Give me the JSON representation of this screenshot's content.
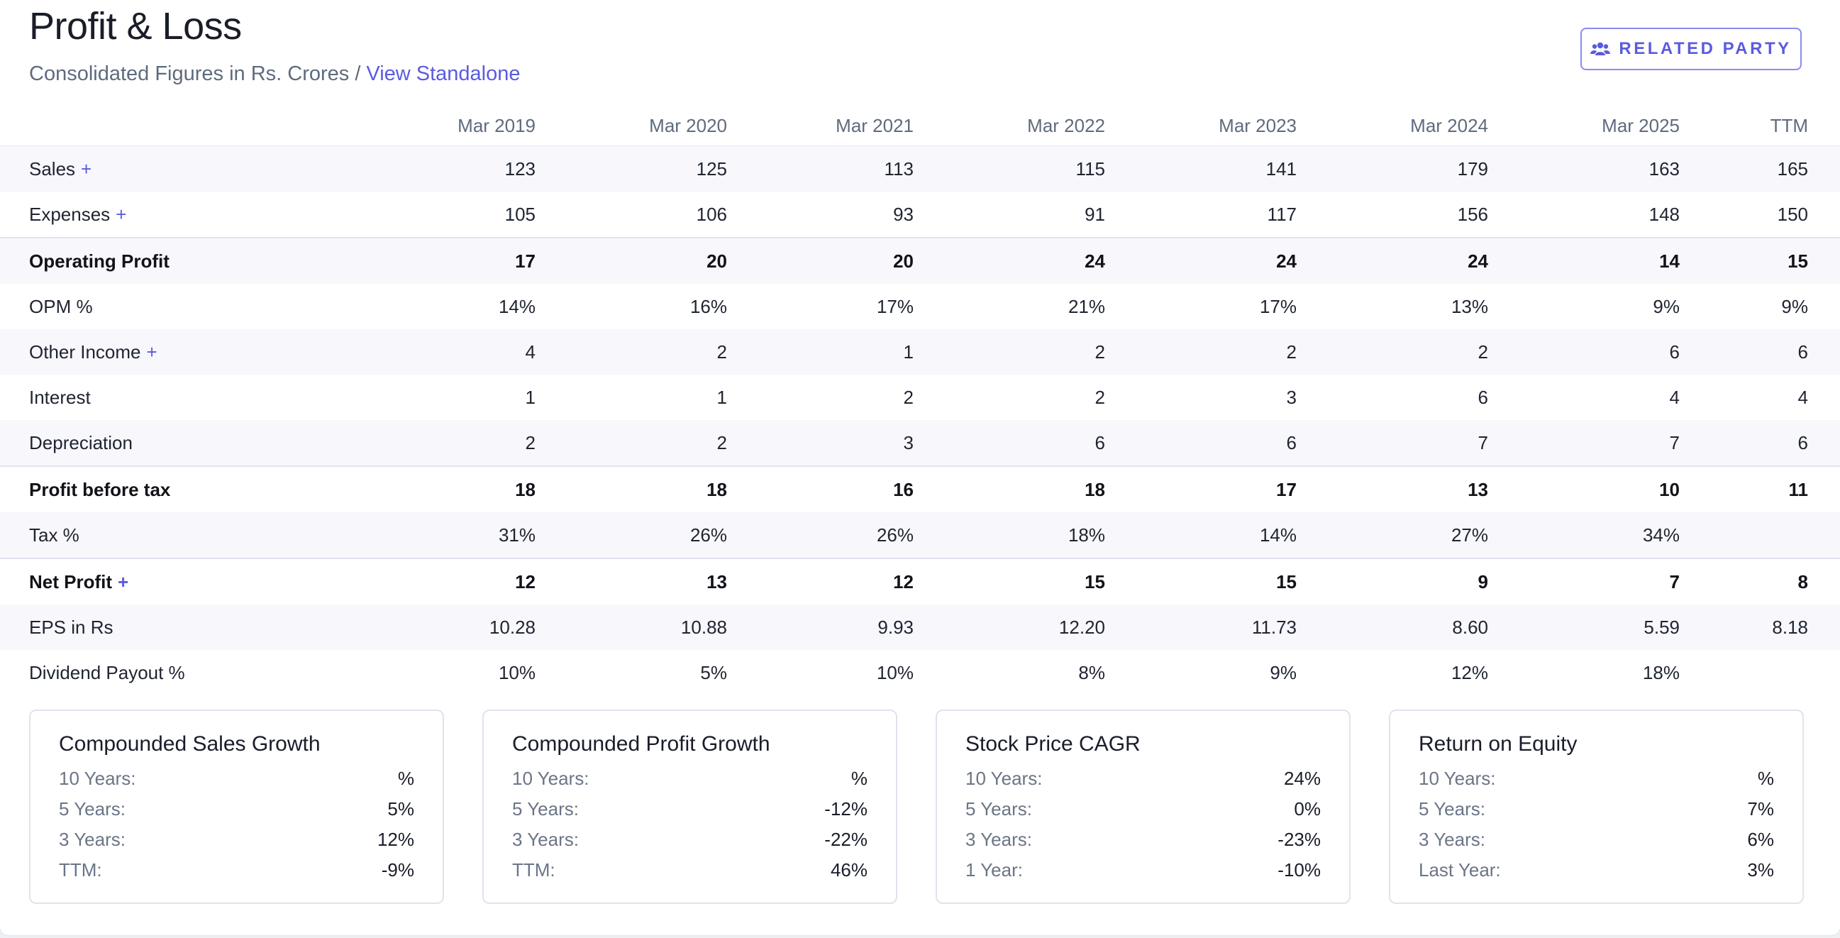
{
  "header": {
    "title": "Profit & Loss",
    "subtitle": "Consolidated Figures in Rs. Crores",
    "separator": "/",
    "standalone_link": "View Standalone",
    "related_party_button": "RELATED PARTY",
    "related_party_icon": "users-icon"
  },
  "accent_color": "#5b5be0",
  "table": {
    "columns": [
      "Mar 2019",
      "Mar 2020",
      "Mar 2021",
      "Mar 2022",
      "Mar 2023",
      "Mar 2024",
      "Mar 2025",
      "TTM"
    ],
    "rows": [
      {
        "label": "Sales",
        "plus": "+",
        "values": [
          "123",
          "125",
          "113",
          "115",
          "141",
          "179",
          "163",
          "165"
        ]
      },
      {
        "label": "Expenses",
        "plus": "+",
        "values": [
          "105",
          "106",
          "93",
          "91",
          "117",
          "156",
          "148",
          "150"
        ]
      },
      {
        "label": "Operating Profit",
        "plus": "",
        "values": [
          "17",
          "20",
          "20",
          "24",
          "24",
          "24",
          "14",
          "15"
        ]
      },
      {
        "label": "OPM %",
        "plus": "",
        "values": [
          "14%",
          "16%",
          "17%",
          "21%",
          "17%",
          "13%",
          "9%",
          "9%"
        ]
      },
      {
        "label": "Other Income",
        "plus": "+",
        "values": [
          "4",
          "2",
          "1",
          "2",
          "2",
          "2",
          "6",
          "6"
        ]
      },
      {
        "label": "Interest",
        "plus": "",
        "values": [
          "1",
          "1",
          "2",
          "2",
          "3",
          "6",
          "4",
          "4"
        ]
      },
      {
        "label": "Depreciation",
        "plus": "",
        "values": [
          "2",
          "2",
          "3",
          "6",
          "6",
          "7",
          "7",
          "6"
        ]
      },
      {
        "label": "Profit before tax",
        "plus": "",
        "values": [
          "18",
          "18",
          "16",
          "18",
          "17",
          "13",
          "10",
          "11"
        ]
      },
      {
        "label": "Tax %",
        "plus": "",
        "values": [
          "31%",
          "26%",
          "26%",
          "18%",
          "14%",
          "27%",
          "34%",
          ""
        ]
      },
      {
        "label": "Net Profit",
        "plus": "+",
        "values": [
          "12",
          "13",
          "12",
          "15",
          "15",
          "9",
          "7",
          "8"
        ]
      },
      {
        "label": "EPS in Rs",
        "plus": "",
        "values": [
          "10.28",
          "10.88",
          "9.93",
          "12.20",
          "11.73",
          "8.60",
          "5.59",
          "8.18"
        ]
      },
      {
        "label": "Dividend Payout %",
        "plus": "",
        "values": [
          "10%",
          "5%",
          "10%",
          "8%",
          "9%",
          "12%",
          "18%",
          ""
        ]
      }
    ]
  },
  "ranges": [
    {
      "title": "Compounded Sales Growth",
      "rows": [
        {
          "label": "10 Years:",
          "value": "%"
        },
        {
          "label": "5 Years:",
          "value": "5%"
        },
        {
          "label": "3 Years:",
          "value": "12%"
        },
        {
          "label": "TTM:",
          "value": "-9%"
        }
      ]
    },
    {
      "title": "Compounded Profit Growth",
      "rows": [
        {
          "label": "10 Years:",
          "value": "%"
        },
        {
          "label": "5 Years:",
          "value": "-12%"
        },
        {
          "label": "3 Years:",
          "value": "-22%"
        },
        {
          "label": "TTM:",
          "value": "46%"
        }
      ]
    },
    {
      "title": "Stock Price CAGR",
      "rows": [
        {
          "label": "10 Years:",
          "value": "24%"
        },
        {
          "label": "5 Years:",
          "value": "0%"
        },
        {
          "label": "3 Years:",
          "value": "-23%"
        },
        {
          "label": "1 Year:",
          "value": "-10%"
        }
      ]
    },
    {
      "title": "Return on Equity",
      "rows": [
        {
          "label": "10 Years:",
          "value": "%"
        },
        {
          "label": "5 Years:",
          "value": "7%"
        },
        {
          "label": "3 Years:",
          "value": "6%"
        },
        {
          "label": "Last Year:",
          "value": "3%"
        }
      ]
    }
  ]
}
